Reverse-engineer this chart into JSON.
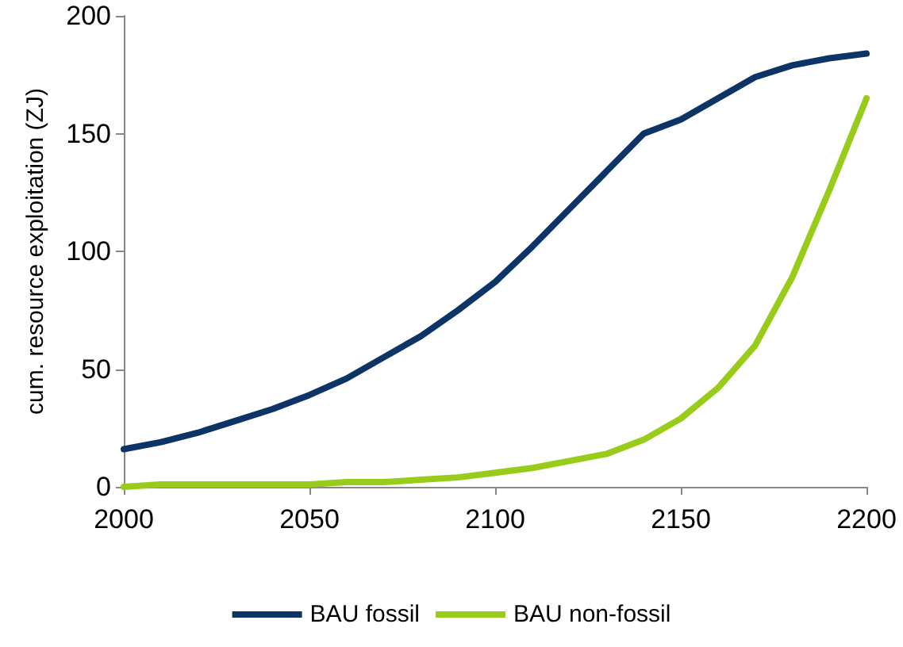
{
  "chart_data": {
    "type": "line",
    "ylabel": "cum. resource exploitation (ZJ)",
    "x": [
      2000,
      2010,
      2020,
      2030,
      2040,
      2050,
      2060,
      2070,
      2080,
      2090,
      2100,
      2110,
      2120,
      2130,
      2140,
      2150,
      2160,
      2170,
      2180,
      2190,
      2200
    ],
    "series": [
      {
        "name": "BAU fossil",
        "color": "#0d3466",
        "values": [
          16,
          19,
          23,
          28,
          33,
          39,
          46,
          55,
          64,
          75,
          87,
          102,
          118,
          134,
          150,
          156,
          165,
          174,
          179,
          182,
          184
        ]
      },
      {
        "name": "BAU non-fossil",
        "color": "#99cc1a",
        "values": [
          0,
          1,
          1,
          1,
          1,
          1,
          2,
          2,
          3,
          4,
          6,
          8,
          11,
          14,
          20,
          29,
          42,
          60,
          89,
          126,
          165
        ]
      }
    ],
    "xlim": [
      2000,
      2200
    ],
    "xticks": [
      2000,
      2050,
      2100,
      2150,
      2200
    ],
    "ylim": [
      0,
      200
    ],
    "yticks": [
      0,
      50,
      100,
      150,
      200
    ],
    "grid": false,
    "legend": "bottom",
    "marker": "none",
    "line_style": "solid"
  }
}
